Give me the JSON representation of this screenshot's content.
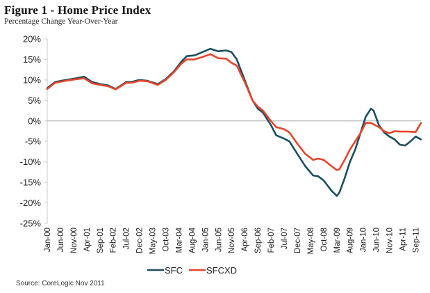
{
  "chart_data": {
    "type": "line",
    "title": "Figure 1 - Home Price Index",
    "subtitle": "Percentage Change Year-Over-Year",
    "xlabel": "",
    "ylabel": "",
    "ylim": [
      -25,
      20
    ],
    "y_ticks": [
      20,
      15,
      10,
      5,
      0,
      -5,
      -10,
      -15,
      -20,
      -25
    ],
    "y_tick_labels": [
      "20%",
      "15%",
      "10%",
      "5%",
      "0%",
      "-5%",
      "-10%",
      "-15%",
      "-20%",
      "-25%"
    ],
    "x_range_months": [
      0,
      142
    ],
    "x_tick_labels": [
      "Jan-00",
      "Jun-00",
      "Nov-00",
      "Apr-01",
      "Sep-01",
      "Feb-02",
      "Jul-02",
      "Dec-02",
      "May-03",
      "Oct-03",
      "Mar-04",
      "Aug-04",
      "Jan-05",
      "Jun-05",
      "Nov-05",
      "Apr-06",
      "Sep-06",
      "Feb-07",
      "Jul-07",
      "Dec-07",
      "May-08",
      "Oct-08",
      "Mar-09",
      "Aug-09",
      "Jan-10",
      "Jun-10",
      "Nov-10",
      "Apr-11",
      "Sep-11"
    ],
    "x_tick_month_step": 5,
    "grid": false,
    "legend_position": "bottom-center",
    "source": "Source: CoreLogic Nov 2011",
    "series": [
      {
        "name": "SFC",
        "color": "#1b4e5e",
        "months": [
          0,
          3,
          7,
          10,
          14,
          17,
          20,
          23,
          26,
          30,
          32,
          35,
          38,
          42,
          45,
          48,
          51,
          53,
          56,
          59,
          62,
          65,
          68,
          70,
          72,
          75,
          78,
          80,
          82,
          85,
          87,
          90,
          92,
          95,
          98,
          101,
          103,
          105,
          108,
          110,
          111,
          113,
          115,
          117,
          119,
          121,
          123,
          124,
          126,
          128,
          130,
          132,
          134,
          136,
          138,
          140,
          142
        ],
        "values": [
          8,
          9.5,
          10,
          10.3,
          10.8,
          9.5,
          9,
          8.7,
          7.8,
          9.5,
          9.5,
          10,
          9.8,
          9,
          10.2,
          12,
          14.5,
          15.8,
          16,
          16.8,
          17.6,
          17,
          17.2,
          16.8,
          15,
          10,
          5,
          3,
          2,
          -1,
          -3.5,
          -4.3,
          -5,
          -8,
          -11,
          -13.3,
          -13.5,
          -14.5,
          -17,
          -18.3,
          -17.5,
          -14,
          -10,
          -7,
          -3,
          1,
          3,
          2.5,
          -1,
          -2.8,
          -3.8,
          -4.5,
          -5.8,
          -6,
          -5,
          -3.8,
          -4.5
        ]
      },
      {
        "name": "SFCXD",
        "color": "#e8452c",
        "months": [
          0,
          3,
          7,
          10,
          14,
          17,
          20,
          23,
          26,
          30,
          32,
          35,
          38,
          42,
          45,
          48,
          51,
          53,
          56,
          59,
          62,
          65,
          68,
          70,
          72,
          75,
          78,
          80,
          82,
          85,
          87,
          90,
          92,
          95,
          98,
          101,
          103,
          105,
          108,
          110,
          111,
          113,
          115,
          117,
          119,
          121,
          123,
          126,
          128,
          130,
          132,
          134,
          137,
          140,
          142
        ],
        "values": [
          7.8,
          9.3,
          9.8,
          10.1,
          10.4,
          9.2,
          8.8,
          8.5,
          7.7,
          9.3,
          9.3,
          9.8,
          9.7,
          8.8,
          10,
          11.8,
          14,
          15,
          15,
          15.6,
          16.3,
          15.3,
          15.2,
          14.2,
          13.5,
          9.5,
          5,
          3.5,
          2.5,
          0,
          -1.5,
          -2,
          -2.8,
          -5.5,
          -8,
          -9.5,
          -9.2,
          -9.5,
          -11,
          -12,
          -11.8,
          -9.5,
          -7,
          -5,
          -3,
          -0.5,
          -0.5,
          -1.5,
          -2.5,
          -3,
          -2.5,
          -2.6,
          -2.6,
          -2.7,
          -0.5
        ]
      }
    ]
  }
}
